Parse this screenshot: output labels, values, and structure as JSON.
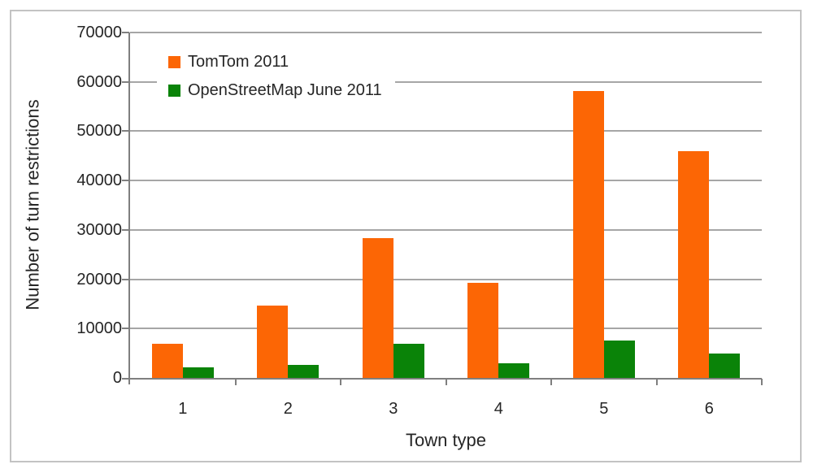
{
  "chart_data": {
    "type": "bar",
    "categories": [
      "1",
      "2",
      "3",
      "4",
      "5",
      "6"
    ],
    "series": [
      {
        "name": "TomTom 2011",
        "color": "#fc6605",
        "values": [
          7000,
          14600,
          28400,
          19300,
          58200,
          45900
        ]
      },
      {
        "name": "OpenStreetMap June 2011",
        "color": "#0a8308",
        "values": [
          2200,
          2700,
          7000,
          2900,
          7500,
          5000
        ]
      }
    ],
    "title": "",
    "xlabel": "Town type",
    "ylabel": "Number of turn restrictions",
    "ylim": [
      0,
      70000
    ],
    "ytick_step": 10000,
    "yticks": [
      "0",
      "10000",
      "20000",
      "30000",
      "40000",
      "50000",
      "60000",
      "70000"
    ],
    "grid": true,
    "legend_position": "inside-top-left",
    "colors": {
      "gridline": "#a6a6a6",
      "axis": "#7f7f7f",
      "frame_border": "#c3c3c3",
      "text": "#262626",
      "background": "#ffffff"
    }
  }
}
